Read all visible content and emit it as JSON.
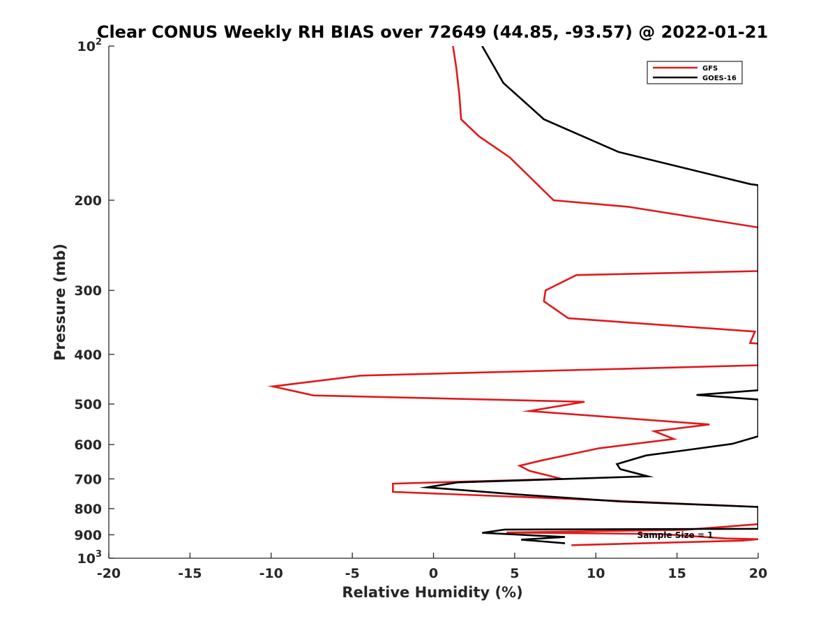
{
  "chart_data": {
    "type": "line",
    "title": "Clear CONUS Weekly RH BIAS over 72649 (44.85, -93.57) @ 2022-01-21",
    "xlabel": "Relative Humidity (%)",
    "ylabel": "Pressure (mb)",
    "xlim": [
      -20,
      20
    ],
    "ylim": [
      100,
      1000
    ],
    "yscale": "log",
    "yreversed": true,
    "x_ticks": [
      -20,
      -15,
      -10,
      -5,
      0,
      5,
      10,
      15,
      20
    ],
    "x_tick_labels": [
      "-20",
      "-15",
      "-10",
      "-5",
      "0",
      "5",
      "10",
      "15",
      "20"
    ],
    "y_ticks": [
      100,
      200,
      300,
      400,
      500,
      600,
      700,
      800,
      900,
      1000
    ],
    "y_tick_labels": [
      {
        "base": "10",
        "exp": "2"
      },
      {
        "base": "200",
        "exp": ""
      },
      {
        "base": "300",
        "exp": ""
      },
      {
        "base": "400",
        "exp": ""
      },
      {
        "base": "500",
        "exp": ""
      },
      {
        "base": "600",
        "exp": ""
      },
      {
        "base": "700",
        "exp": ""
      },
      {
        "base": "800",
        "exp": ""
      },
      {
        "base": "900",
        "exp": ""
      },
      {
        "base": "10",
        "exp": "3"
      }
    ],
    "grid": false,
    "legend_position": "top-right",
    "annotation": "Sample Size = 1",
    "series": [
      {
        "name": "GFS",
        "color": "#e0191b",
        "points": [
          [
            1.2,
            100
          ],
          [
            1.4,
            110
          ],
          [
            1.6,
            125
          ],
          [
            1.7,
            139
          ],
          [
            2.8,
            150
          ],
          [
            4.7,
            165
          ],
          [
            7.4,
            200
          ],
          [
            12,
            206
          ],
          [
            20,
            226
          ],
          [
            20,
            255
          ],
          [
            20,
            275
          ],
          [
            8.8,
            280
          ],
          [
            6.9,
            300
          ],
          [
            6.8,
            315
          ],
          [
            8.3,
            340
          ],
          [
            19.8,
            361
          ],
          [
            19.5,
            380
          ],
          [
            20,
            381
          ],
          [
            20,
            420
          ],
          [
            -4.5,
            440
          ],
          [
            -9.9,
            462
          ],
          [
            -7.4,
            481
          ],
          [
            9.3,
            495
          ],
          [
            5.9,
            516
          ],
          [
            17,
            548
          ],
          [
            13.6,
            565
          ],
          [
            14.8,
            585
          ],
          [
            10.2,
            610
          ],
          [
            6.6,
            645
          ],
          [
            5.3,
            660
          ],
          [
            5.9,
            675
          ],
          [
            7.9,
            700
          ],
          [
            -2.5,
            715
          ],
          [
            -2.5,
            742
          ],
          [
            8,
            765
          ],
          [
            20,
            794
          ],
          [
            20,
            858
          ],
          [
            15.5,
            880
          ],
          [
            4.5,
            891
          ],
          [
            14,
            897
          ],
          [
            18,
            915
          ],
          [
            20,
            918
          ],
          [
            19,
            924
          ],
          [
            8.5,
            943
          ]
        ]
      },
      {
        "name": "GOES-16",
        "color": "#000000",
        "points": [
          [
            3,
            100
          ],
          [
            4.3,
            118
          ],
          [
            6.8,
            139
          ],
          [
            11.4,
            161
          ],
          [
            19.5,
            186
          ],
          [
            20,
            187
          ],
          [
            20,
            470
          ],
          [
            16.2,
            480
          ],
          [
            20,
            490
          ],
          [
            20,
            578
          ],
          [
            18.4,
            598
          ],
          [
            15.6,
            615
          ],
          [
            13.1,
            630
          ],
          [
            11.3,
            655
          ],
          [
            11.5,
            670
          ],
          [
            13.2,
            692
          ],
          [
            1.5,
            711
          ],
          [
            -0.4,
            727
          ],
          [
            5,
            750
          ],
          [
            11.5,
            775
          ],
          [
            20,
            794
          ],
          [
            20,
            876
          ],
          [
            4.4,
            879
          ],
          [
            3,
            892
          ],
          [
            8.1,
            909
          ],
          [
            5.4,
            920
          ],
          [
            8.1,
            935
          ]
        ]
      }
    ]
  }
}
